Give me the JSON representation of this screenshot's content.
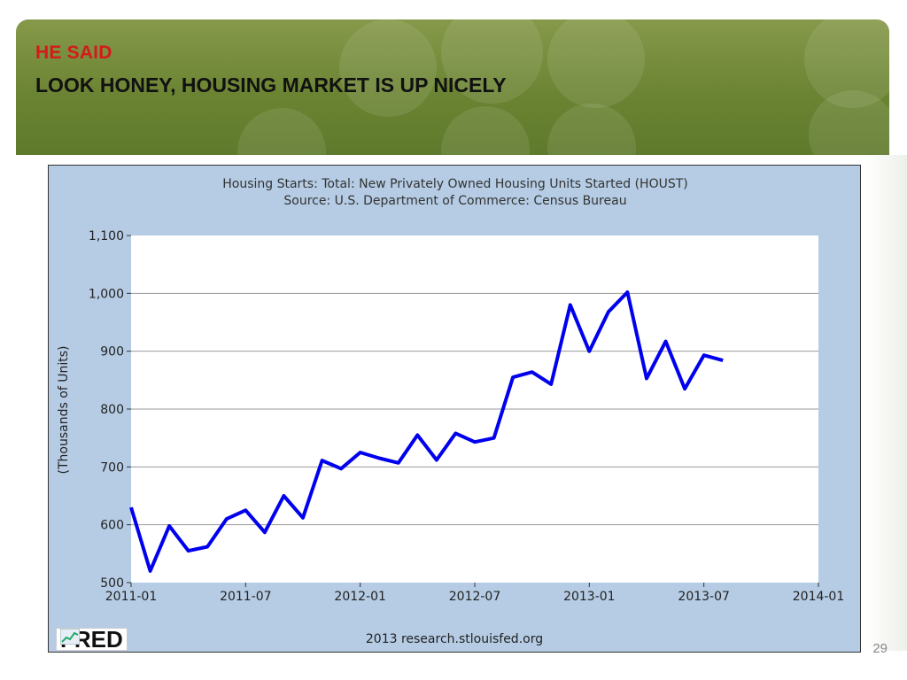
{
  "slide": {
    "subtitle_red": "HE SAID",
    "title": "LOOK HONEY, HOUSING MARKET IS UP NICELY",
    "page_number": "29"
  },
  "footer": {
    "logo": "FRED",
    "credit": "2013 research.stlouisfed.org"
  },
  "colors": {
    "header_green": "#6b8433",
    "subtitle_red": "#d41a1a",
    "chart_bg": "#b5cce4",
    "series_blue": "#0000ee"
  },
  "chart_data": {
    "type": "line",
    "title": "Housing Starts: Total: New Privately Owned Housing Units Started (HOUST)",
    "subtitle": "Source: U.S. Department of Commerce: Census Bureau",
    "xlabel": "",
    "ylabel": "(Thousands of Units)",
    "ylim": [
      500,
      1100
    ],
    "yticks": [
      500,
      600,
      700,
      800,
      900,
      1000,
      1100
    ],
    "ytick_labels": [
      "500",
      "600",
      "700",
      "800",
      "900",
      "1,000",
      "1,100"
    ],
    "xlim": [
      "2011-01",
      "2014-01"
    ],
    "xticks": [
      "2011-01",
      "2011-07",
      "2012-01",
      "2012-07",
      "2013-01",
      "2013-07",
      "2014-01"
    ],
    "grid": "horizontal",
    "series": [
      {
        "x": [
          "2011-01",
          "2011-02",
          "2011-03",
          "2011-04",
          "2011-05",
          "2011-06",
          "2011-07",
          "2011-08",
          "2011-09",
          "2011-10",
          "2011-11",
          "2011-12",
          "2012-01",
          "2012-02",
          "2012-03",
          "2012-04",
          "2012-05",
          "2012-06",
          "2012-07",
          "2012-08",
          "2012-09",
          "2012-10",
          "2012-11",
          "2012-12",
          "2013-01",
          "2013-02",
          "2013-03",
          "2013-04",
          "2013-05",
          "2013-06",
          "2013-07",
          "2013-08"
        ],
        "values": [
          630,
          520,
          598,
          555,
          562,
          610,
          625,
          587,
          650,
          612,
          711,
          697,
          725,
          715,
          707,
          755,
          712,
          758,
          743,
          750,
          855,
          864,
          843,
          980,
          900,
          968,
          1002,
          853,
          917,
          835,
          893,
          884
        ]
      }
    ]
  }
}
